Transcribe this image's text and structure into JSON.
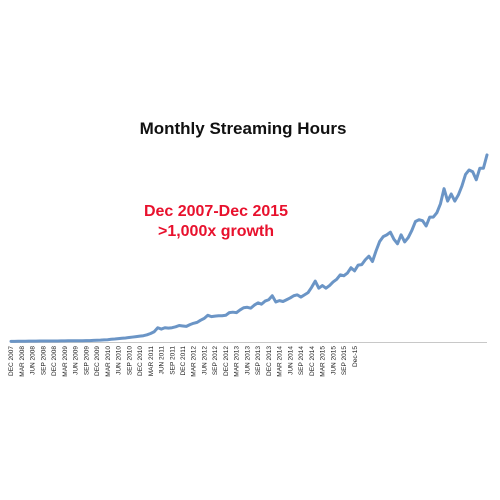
{
  "colors": {
    "line": "#6b95c6",
    "annotation": "#e8112d",
    "axis": "#c8c8c8",
    "background": "#ffffff"
  },
  "chart_data": {
    "type": "line",
    "title": "Monthly Streaming Hours",
    "annotation": [
      "Dec 2007-Dec 2015",
      ">1,000x growth"
    ],
    "xlabel": "",
    "ylabel": "",
    "y_axis_shown": false,
    "grid": false,
    "legend": "none",
    "x_start": "DEC 2007",
    "x_end": "Dec-15",
    "tick_labels": [
      "DEC 2007",
      "MAR 2008",
      "JUN 2008",
      "SEP 2008",
      "DEC 2008",
      "MAR 2009",
      "JUN 2009",
      "SEP 2009",
      "DEC 2009",
      "MAR 2010",
      "JUN 2010",
      "SEP 2010",
      "DEC 2010",
      "MAR 2011",
      "JUN 2011",
      "SEP 2011",
      "DEC 2011",
      "MAR 2012",
      "JUN 2012",
      "SEP 2012",
      "DEC 2012",
      "MAR 2013",
      "JUN 2013",
      "SEP 2013",
      "DEC 2013",
      "MAR 2014",
      "JUN 2014",
      "SEP 2014",
      "DEC 2014",
      "MAR 2015",
      "JUN 2015",
      "SEP 2015",
      "Dec-15"
    ],
    "values": [
      0.2,
      0.2,
      0.3,
      0.3,
      0.3,
      0.4,
      0.4,
      0.4,
      0.5,
      0.5,
      0.5,
      0.5,
      0.6,
      0.6,
      0.7,
      0.7,
      0.8,
      0.8,
      0.8,
      0.9,
      0.9,
      1.0,
      1.0,
      1.2,
      1.4,
      1.5,
      1.8,
      2.0,
      2.5,
      2.8,
      3.2,
      3.6,
      4.0,
      4.5,
      5.0,
      5.5,
      6.0,
      6.5,
      7.5,
      9.0,
      11.0,
      15.5,
      14.0,
      15.5,
      15.0,
      15.5,
      16.5,
      18.0,
      17.5,
      17.0,
      19.0,
      20.5,
      21.5,
      24.0,
      26.0,
      29.5,
      28.0,
      28.5,
      29.0,
      29.0,
      29.5,
      32.5,
      33.0,
      32.5,
      35.5,
      38.0,
      38.5,
      37.5,
      41.0,
      43.5,
      42.0,
      45.5,
      47.0,
      51.5,
      44.5,
      46.0,
      45.0,
      47.0,
      49.0,
      51.5,
      52.5,
      50.0,
      52.5,
      55.0,
      61.0,
      68.0,
      60.0,
      63.0,
      60.0,
      63.0,
      67.0,
      70.0,
      75.0,
      74.0,
      77.0,
      83.0,
      79.5,
      86.0,
      86.5,
      92.0,
      96.0,
      90.0,
      102.0,
      112.5,
      118.0,
      120.0,
      123.0,
      115.0,
      110.0,
      120.0,
      112.0,
      117.0,
      125.0,
      135.0,
      137.0,
      136.0,
      130.0,
      140.0,
      140.0,
      145.0,
      155.0,
      172.0,
      158.0,
      166.0,
      158.0,
      165.0,
      175.0,
      188.0,
      193.0,
      191.0,
      182.0,
      195.0,
      195.0,
      210.0
    ],
    "ylim": [
      0,
      220
    ]
  }
}
